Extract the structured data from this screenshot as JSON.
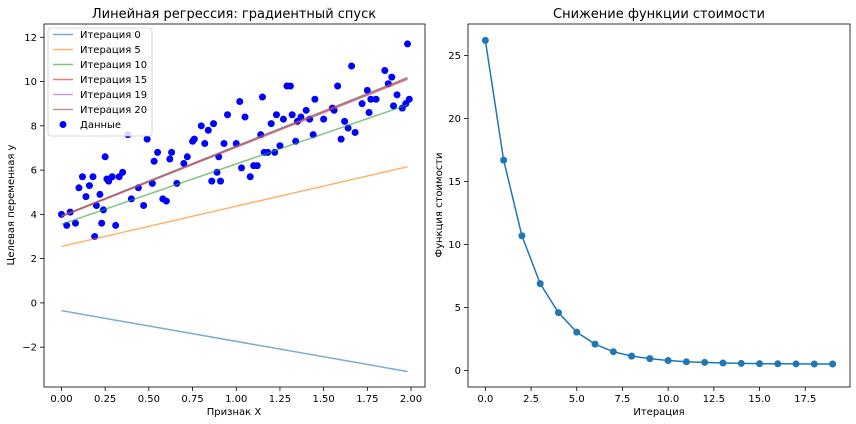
{
  "chart_data": [
    {
      "type": "scatter",
      "title": "Линейная регрессия: градиентный спуск",
      "xlabel": "Признак X",
      "ylabel": "Целевая переменная y",
      "xlim": [
        -0.1,
        2.08
      ],
      "ylim": [
        -3.8,
        12.6
      ],
      "xticks": [
        0.0,
        0.25,
        0.5,
        0.75,
        1.0,
        1.25,
        1.5,
        1.75,
        2.0
      ],
      "xtick_labels": [
        "0.00",
        "0.25",
        "0.50",
        "0.75",
        "1.00",
        "1.25",
        "1.50",
        "1.75",
        "2.00"
      ],
      "yticks": [
        -2,
        0,
        2,
        4,
        6,
        8,
        10,
        12
      ],
      "ytick_labels": [
        "−2",
        "0",
        "2",
        "4",
        "6",
        "8",
        "10",
        "12"
      ],
      "grid": false,
      "legend_position": "upper-left",
      "lines": [
        {
          "name": "Итерация 0",
          "color": "#1f77b4",
          "x": [
            0.0,
            1.98
          ],
          "y": [
            -0.35,
            -3.1
          ]
        },
        {
          "name": "Итерация 5",
          "color": "#ff7f0e",
          "x": [
            0.0,
            1.98
          ],
          "y": [
            2.55,
            6.15
          ]
        },
        {
          "name": "Итерация 10",
          "color": "#2ca02c",
          "x": [
            0.0,
            1.98
          ],
          "y": [
            3.55,
            8.95
          ]
        },
        {
          "name": "Итерация 15",
          "color": "#d62728",
          "x": [
            0.0,
            1.98
          ],
          "y": [
            3.9,
            10.1
          ]
        },
        {
          "name": "Итерация 19",
          "color": "#9467bd",
          "x": [
            0.0,
            1.98
          ],
          "y": [
            3.92,
            10.15
          ]
        },
        {
          "name": "Итерация 20",
          "color": "#8c564b",
          "x": [
            0.0,
            1.98
          ],
          "y": [
            3.93,
            10.18
          ]
        }
      ],
      "scatter": {
        "name": "Данные",
        "color": "#0000ff",
        "points": [
          [
            0.0,
            4.0
          ],
          [
            0.03,
            3.5
          ],
          [
            0.05,
            4.1
          ],
          [
            0.08,
            3.6
          ],
          [
            0.1,
            5.2
          ],
          [
            0.12,
            5.7
          ],
          [
            0.14,
            4.8
          ],
          [
            0.16,
            5.3
          ],
          [
            0.18,
            5.7
          ],
          [
            0.19,
            3.0
          ],
          [
            0.2,
            4.4
          ],
          [
            0.22,
            4.9
          ],
          [
            0.23,
            3.6
          ],
          [
            0.24,
            4.2
          ],
          [
            0.25,
            6.6
          ],
          [
            0.26,
            5.6
          ],
          [
            0.27,
            5.5
          ],
          [
            0.29,
            5.7
          ],
          [
            0.31,
            3.5
          ],
          [
            0.33,
            5.7
          ],
          [
            0.35,
            5.9
          ],
          [
            0.38,
            7.6
          ],
          [
            0.4,
            4.7
          ],
          [
            0.44,
            5.2
          ],
          [
            0.47,
            4.4
          ],
          [
            0.49,
            7.4
          ],
          [
            0.52,
            5.4
          ],
          [
            0.53,
            6.4
          ],
          [
            0.55,
            6.8
          ],
          [
            0.58,
            4.7
          ],
          [
            0.6,
            4.6
          ],
          [
            0.62,
            6.5
          ],
          [
            0.63,
            6.8
          ],
          [
            0.66,
            5.4
          ],
          [
            0.7,
            6.3
          ],
          [
            0.72,
            6.6
          ],
          [
            0.75,
            7.3
          ],
          [
            0.76,
            7.4
          ],
          [
            0.8,
            8.0
          ],
          [
            0.82,
            7.2
          ],
          [
            0.84,
            7.8
          ],
          [
            0.86,
            5.5
          ],
          [
            0.87,
            8.1
          ],
          [
            0.89,
            5.9
          ],
          [
            0.9,
            6.6
          ],
          [
            0.91,
            5.5
          ],
          [
            0.93,
            7.2
          ],
          [
            0.95,
            8.5
          ],
          [
            1.0,
            7.2
          ],
          [
            1.02,
            9.1
          ],
          [
            1.03,
            6.1
          ],
          [
            1.05,
            8.4
          ],
          [
            1.08,
            5.7
          ],
          [
            1.1,
            6.2
          ],
          [
            1.12,
            6.2
          ],
          [
            1.14,
            7.6
          ],
          [
            1.15,
            9.3
          ],
          [
            1.16,
            6.8
          ],
          [
            1.18,
            6.8
          ],
          [
            1.2,
            8.1
          ],
          [
            1.22,
            6.8
          ],
          [
            1.23,
            8.5
          ],
          [
            1.25,
            7.1
          ],
          [
            1.27,
            8.3
          ],
          [
            1.29,
            9.8
          ],
          [
            1.31,
            9.8
          ],
          [
            1.32,
            8.5
          ],
          [
            1.34,
            7.3
          ],
          [
            1.35,
            8.2
          ],
          [
            1.37,
            8.4
          ],
          [
            1.4,
            8.7
          ],
          [
            1.42,
            8.3
          ],
          [
            1.44,
            7.6
          ],
          [
            1.45,
            9.2
          ],
          [
            1.5,
            8.3
          ],
          [
            1.55,
            8.8
          ],
          [
            1.56,
            8.7
          ],
          [
            1.58,
            9.8
          ],
          [
            1.6,
            7.4
          ],
          [
            1.62,
            8.2
          ],
          [
            1.64,
            7.9
          ],
          [
            1.66,
            10.7
          ],
          [
            1.68,
            7.7
          ],
          [
            1.72,
            9.0
          ],
          [
            1.75,
            9.6
          ],
          [
            1.77,
            9.2
          ],
          [
            1.8,
            9.2
          ],
          [
            1.85,
            10.5
          ],
          [
            1.87,
            9.9
          ],
          [
            1.89,
            10.2
          ],
          [
            1.9,
            8.9
          ],
          [
            1.92,
            9.4
          ],
          [
            1.95,
            8.8
          ],
          [
            1.97,
            9.0
          ],
          [
            1.98,
            11.7
          ],
          [
            1.99,
            9.2
          ],
          [
            1.76,
            8.6
          ]
        ]
      }
    },
    {
      "type": "line",
      "title": "Снижение функции стоимости",
      "xlabel": "Итерация",
      "ylabel": "Функция стоимости",
      "xlim": [
        -0.95,
        19.95
      ],
      "ylim": [
        -1.3,
        27.5
      ],
      "xticks": [
        0.0,
        2.5,
        5.0,
        7.5,
        10.0,
        12.5,
        15.0,
        17.5
      ],
      "xtick_labels": [
        "0.0",
        "2.5",
        "5.0",
        "7.5",
        "10.0",
        "12.5",
        "15.0",
        "17.5"
      ],
      "yticks": [
        0,
        5,
        10,
        15,
        20,
        25
      ],
      "ytick_labels": [
        "0",
        "5",
        "10",
        "15",
        "20",
        "25"
      ],
      "grid": false,
      "series": [
        {
          "color": "#1f77b4",
          "x": [
            0,
            1,
            2,
            3,
            4,
            5,
            6,
            7,
            8,
            9,
            10,
            11,
            12,
            13,
            14,
            15,
            16,
            17,
            18,
            19
          ],
          "values": [
            26.2,
            16.7,
            10.7,
            6.9,
            4.6,
            3.05,
            2.1,
            1.5,
            1.15,
            0.95,
            0.8,
            0.7,
            0.65,
            0.6,
            0.57,
            0.55,
            0.54,
            0.53,
            0.52,
            0.52
          ]
        }
      ]
    }
  ]
}
